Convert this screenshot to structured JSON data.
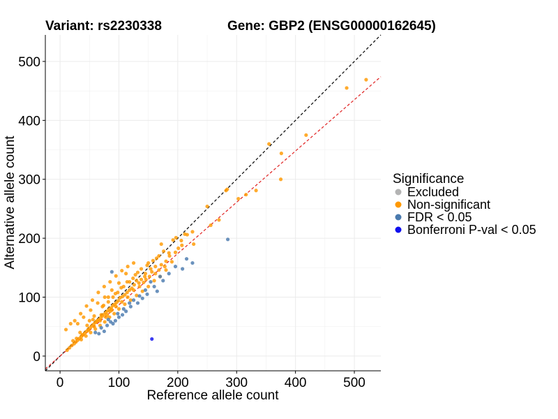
{
  "chart_data": {
    "type": "scatter",
    "title_left": "Variant: rs2230338",
    "title_right": "Gene: GBP2 (ENSG00000162645)",
    "xlabel": "Reference allele count",
    "ylabel": "Alternative allele count",
    "xlim": [
      -25,
      545
    ],
    "ylim": [
      -25,
      545
    ],
    "xticks": [
      0,
      100,
      200,
      300,
      400,
      500
    ],
    "yticks": [
      0,
      100,
      200,
      300,
      400,
      500
    ],
    "grid": true,
    "legend": {
      "title": "Significance",
      "position": "right",
      "entries": [
        {
          "label": "Excluded",
          "color": "#b3b3b3"
        },
        {
          "label": "Non-significant",
          "color": "#ff9900"
        },
        {
          "label": "FDR < 0.05",
          "color": "#4a7aae"
        },
        {
          "label": "Bonferroni P-val < 0.05",
          "color": "#1010ee"
        }
      ]
    },
    "reference_lines": [
      {
        "name": "identity",
        "slope": 1,
        "intercept": 0,
        "color": "#000000",
        "dash": "dashed"
      },
      {
        "name": "fit",
        "slope": 0.87,
        "intercept": 0,
        "color": "#e02020",
        "dash": "dashed"
      }
    ],
    "series": [
      {
        "category": "Non-significant",
        "color": "#ff9900",
        "points": [
          [
            520,
            469
          ],
          [
            487,
            455
          ],
          [
            418,
            375
          ],
          [
            376,
            344
          ],
          [
            375,
            300
          ],
          [
            355,
            360
          ],
          [
            333,
            281
          ],
          [
            316,
            274
          ],
          [
            303,
            267
          ],
          [
            284,
            283
          ],
          [
            282,
            281
          ],
          [
            250,
            254
          ],
          [
            270,
            231
          ],
          [
            256,
            222
          ],
          [
            225,
            211
          ],
          [
            227,
            190
          ],
          [
            212,
            207
          ],
          [
            207,
            188
          ],
          [
            201,
            183
          ],
          [
            197,
            201
          ],
          [
            192,
            197
          ],
          [
            185,
            175
          ],
          [
            180,
            161
          ],
          [
            172,
            190
          ],
          [
            168,
            170
          ],
          [
            162,
            152
          ],
          [
            156,
            143
          ],
          [
            150,
            158
          ],
          [
            144,
            135
          ],
          [
            138,
            130
          ],
          [
            134,
            124
          ],
          [
            130,
            128
          ],
          [
            126,
            121
          ],
          [
            122,
            115
          ],
          [
            118,
            112
          ],
          [
            114,
            108
          ],
          [
            110,
            104
          ],
          [
            106,
            101
          ],
          [
            102,
            99
          ],
          [
            99,
            94
          ],
          [
            96,
            91
          ],
          [
            93,
            88
          ],
          [
            90,
            86
          ],
          [
            87,
            82
          ],
          [
            84,
            80
          ],
          [
            81,
            77
          ],
          [
            78,
            74
          ],
          [
            75,
            71
          ],
          [
            72,
            68
          ],
          [
            69,
            65
          ],
          [
            66,
            62
          ],
          [
            63,
            60
          ],
          [
            60,
            57
          ],
          [
            57,
            54
          ],
          [
            54,
            51
          ],
          [
            51,
            48
          ],
          [
            48,
            45
          ],
          [
            45,
            42
          ],
          [
            42,
            39
          ],
          [
            39,
            36
          ],
          [
            36,
            33
          ],
          [
            33,
            30
          ],
          [
            30,
            27
          ],
          [
            27,
            24
          ],
          [
            24,
            21
          ],
          [
            20,
            18
          ],
          [
            16,
            14
          ],
          [
            12,
            10
          ],
          [
            10,
            45
          ],
          [
            18,
            55
          ],
          [
            25,
            60
          ],
          [
            35,
            72
          ],
          [
            45,
            85
          ],
          [
            55,
            95
          ],
          [
            65,
            108
          ],
          [
            75,
            118
          ],
          [
            85,
            126
          ],
          [
            95,
            136
          ],
          [
            105,
            145
          ],
          [
            115,
            152
          ],
          [
            125,
            158
          ],
          [
            112,
            140
          ],
          [
            100,
            124
          ],
          [
            88,
            112
          ],
          [
            76,
            100
          ],
          [
            64,
            90
          ],
          [
            52,
            78
          ],
          [
            40,
            66
          ],
          [
            30,
            55
          ],
          [
            140,
            110
          ],
          [
            150,
            118
          ],
          [
            160,
            128
          ],
          [
            170,
            135
          ],
          [
            180,
            146
          ],
          [
            190,
            160
          ],
          [
            130,
            103
          ],
          [
            120,
            95
          ],
          [
            110,
            88
          ],
          [
            100,
            80
          ],
          [
            92,
            72
          ],
          [
            84,
            66
          ],
          [
            76,
            58
          ],
          [
            68,
            52
          ],
          [
            60,
            46
          ],
          [
            52,
            40
          ],
          [
            44,
            34
          ],
          [
            36,
            28
          ],
          [
            108,
            118
          ],
          [
            98,
            108
          ],
          [
            118,
            126
          ],
          [
            128,
            138
          ],
          [
            138,
            148
          ],
          [
            148,
            154
          ],
          [
            158,
            162
          ],
          [
            168,
            146
          ],
          [
            178,
            152
          ],
          [
            145,
            140
          ],
          [
            135,
            118
          ],
          [
            125,
            112
          ],
          [
            115,
            100
          ],
          [
            105,
            92
          ],
          [
            95,
            84
          ],
          [
            85,
            76
          ],
          [
            70,
            70
          ],
          [
            80,
            70
          ],
          [
            90,
            100
          ],
          [
            82,
            92
          ],
          [
            74,
            86
          ],
          [
            58,
            68
          ],
          [
            50,
            60
          ],
          [
            62,
            58
          ],
          [
            142,
            125
          ],
          [
            152,
            135
          ],
          [
            162,
            140
          ],
          [
            172,
            155
          ],
          [
            186,
            170
          ],
          [
            196,
            176
          ],
          [
            206,
            196
          ],
          [
            216,
            206
          ],
          [
            176,
            178
          ],
          [
            164,
            166
          ],
          [
            154,
            148
          ],
          [
            146,
            130
          ],
          [
            82,
            100
          ],
          [
            72,
            84
          ],
          [
            94,
            106
          ],
          [
            104,
            116
          ],
          [
            114,
            126
          ],
          [
            124,
            132
          ],
          [
            132,
            142
          ],
          [
            88,
            78
          ],
          [
            78,
            66
          ],
          [
            68,
            60
          ],
          [
            58,
            50
          ],
          [
            48,
            44
          ],
          [
            38,
            36
          ],
          [
            28,
            30
          ],
          [
            22,
            26
          ],
          [
            34,
            40
          ],
          [
            46,
            52
          ],
          [
            56,
            62
          ]
        ]
      },
      {
        "category": "FDR < 0.05",
        "color": "#4a7aae",
        "points": [
          [
            285,
            198
          ],
          [
            215,
            165
          ],
          [
            208,
            148
          ],
          [
            196,
            152
          ],
          [
            170,
            135
          ],
          [
            175,
            128
          ],
          [
            160,
            118
          ],
          [
            154,
            126
          ],
          [
            148,
            105
          ],
          [
            140,
            98
          ],
          [
            132,
            90
          ],
          [
            125,
            95
          ],
          [
            120,
            84
          ],
          [
            112,
            76
          ],
          [
            106,
            70
          ],
          [
            100,
            66
          ],
          [
            94,
            60
          ],
          [
            90,
            55
          ],
          [
            86,
            58
          ],
          [
            80,
            52
          ],
          [
            75,
            42
          ],
          [
            70,
            48
          ],
          [
            66,
            38
          ],
          [
            88,
            143
          ],
          [
            225,
            158
          ],
          [
            185,
            140
          ],
          [
            165,
            110
          ],
          [
            145,
            112
          ],
          [
            135,
            102
          ],
          [
            118,
            90
          ],
          [
            108,
            80
          ],
          [
            98,
            72
          ],
          [
            82,
            62
          ],
          [
            60,
            40
          ]
        ]
      },
      {
        "category": "Bonferroni P-val < 0.05",
        "color": "#1010ee",
        "points": [
          [
            156,
            29
          ]
        ]
      }
    ]
  }
}
